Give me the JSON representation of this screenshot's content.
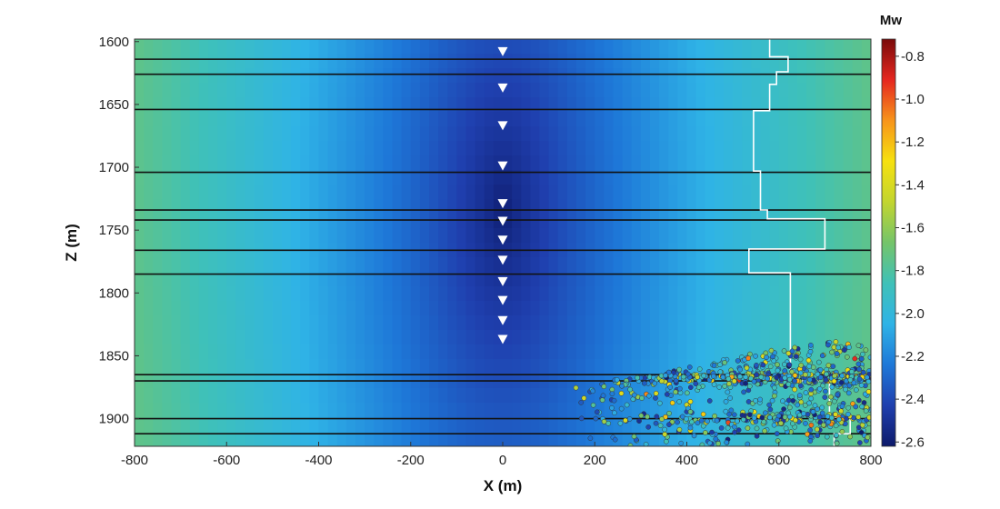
{
  "chart_data": {
    "type": "heatmap",
    "title": "",
    "xlabel": "X (m)",
    "ylabel": "Z (m)",
    "xlim": [
      -800,
      800
    ],
    "ylim": [
      1598,
      1922
    ],
    "y_inverted": true,
    "x_ticks": [
      -800,
      -600,
      -400,
      -200,
      0,
      200,
      400,
      600,
      800
    ],
    "y_ticks": [
      1600,
      1650,
      1700,
      1750,
      1800,
      1850,
      1900
    ],
    "colorbar": {
      "title": "Mw",
      "range": [
        -2.62,
        -0.72
      ],
      "ticks": [
        "-0.8",
        "-1.0",
        "-1.2",
        "-1.4",
        "-1.6",
        "-1.8",
        "-2.0",
        "-2.2",
        "-2.4",
        "-2.6"
      ],
      "tick_values": [
        -0.8,
        -1.0,
        -1.2,
        -1.4,
        -1.6,
        -1.8,
        -2.0,
        -2.2,
        -2.4,
        -2.6
      ],
      "colormap": [
        "#0d1a6b",
        "#1f3fae",
        "#1e78d8",
        "#2fb3e6",
        "#3fc1b8",
        "#74c46a",
        "#c2d52f",
        "#f6e10f",
        "#f7941a",
        "#e5261f",
        "#7a0a0a"
      ]
    },
    "background_field": {
      "description_values": "detection threshold Mw varies with distance from monitoring well at x=0",
      "min_mw": -2.6,
      "max_mw": -1.75
    },
    "layer_boundaries_z": [
      1614,
      1626,
      1654,
      1704,
      1734,
      1742,
      1766,
      1785,
      1865,
      1870,
      1900,
      1912
    ],
    "receivers": {
      "x": 0,
      "z": [
        1608,
        1637,
        1667,
        1699,
        1729,
        1743,
        1758,
        1774,
        1791,
        1806,
        1822,
        1837
      ]
    },
    "velocity_profile": {
      "z": [
        1598,
        1612,
        1612,
        1624,
        1624,
        1634,
        1634,
        1655,
        1655,
        1703,
        1703,
        1734,
        1734,
        1741,
        1741,
        1765,
        1765,
        1784,
        1784,
        1866,
        1866,
        1870,
        1870,
        1899,
        1899,
        1912,
        1912,
        1922
      ],
      "x": [
        580,
        580,
        620,
        620,
        595,
        595,
        580,
        580,
        545,
        545,
        560,
        560,
        575,
        575,
        700,
        700,
        535,
        535,
        625,
        625,
        640,
        640,
        710,
        710,
        755,
        755,
        720,
        720
      ]
    },
    "events": {
      "count": 900,
      "x_range": [
        130,
        800
      ],
      "z_range": [
        1830,
        1922
      ],
      "mw_range": [
        -2.6,
        -1.0
      ],
      "main_cluster_z": 1867
    }
  }
}
